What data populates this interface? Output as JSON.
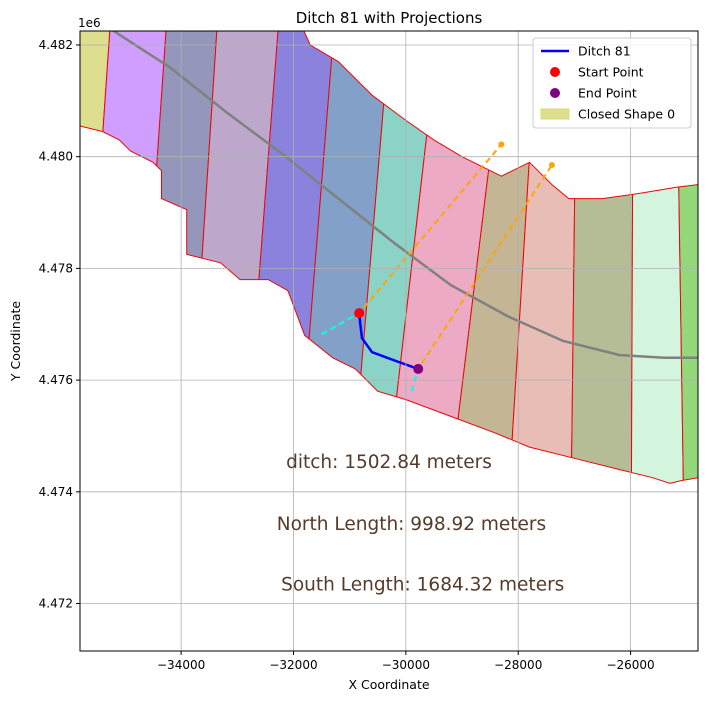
{
  "chart_data": {
    "type": "line",
    "title": "Ditch 81 with Projections",
    "xlabel": "X Coordinate",
    "ylabel": "Y Coordinate",
    "y_offset_label": "1e6",
    "xlim": [
      -35800,
      -24800
    ],
    "ylim": [
      4.47115,
      4.48225
    ],
    "x_ticks": [
      -34000,
      -32000,
      -30000,
      -28000,
      -26000
    ],
    "x_tick_labels": [
      "−34000",
      "−32000",
      "−30000",
      "−28000",
      "−26000"
    ],
    "y_ticks": [
      4.472,
      4.474,
      4.476,
      4.478,
      4.48,
      4.482
    ],
    "y_tick_labels": [
      "4.472",
      "4.474",
      "4.476",
      "4.478",
      "4.480",
      "4.482"
    ],
    "grid": true,
    "legend_position": "top-right",
    "legend": [
      {
        "label": "Ditch 81",
        "kind": "line",
        "color": "#0000ff"
      },
      {
        "label": "Start Point",
        "kind": "marker",
        "color": "#ff0000"
      },
      {
        "label": "End Point",
        "kind": "marker",
        "color": "#800080"
      },
      {
        "label": "Closed Shape 0",
        "kind": "patch",
        "color": "#dede8f"
      }
    ],
    "ditch": {
      "name": "Ditch 81",
      "color": "#0000ff",
      "points": [
        [
          -30830,
          4.4772
        ],
        [
          -30810,
          4.477
        ],
        [
          -30780,
          4.47675
        ],
        [
          -30600,
          4.4765
        ],
        [
          -30200,
          4.47635
        ],
        [
          -29780,
          4.4762
        ]
      ]
    },
    "start_point": {
      "x": -30830,
      "y": 4.4772,
      "color": "#ff0000"
    },
    "end_point": {
      "x": -29780,
      "y": 4.4762,
      "color": "#800080"
    },
    "centerline": {
      "color": "#808080",
      "points": [
        [
          -35800,
          4.4825
        ],
        [
          -35200,
          4.48225
        ],
        [
          -34200,
          4.4816
        ],
        [
          -33200,
          4.4808
        ],
        [
          -32200,
          4.48005
        ],
        [
          -31200,
          4.47925
        ],
        [
          -30200,
          4.47845
        ],
        [
          -29200,
          4.4777
        ],
        [
          -28200,
          4.47715
        ],
        [
          -27200,
          4.4767
        ],
        [
          -26200,
          4.47645
        ],
        [
          -25400,
          4.4764
        ],
        [
          -24800,
          4.4764
        ]
      ]
    },
    "outer_boundary": {
      "north": [
        [
          -35800,
          4.4831
        ],
        [
          -35000,
          4.4831
        ],
        [
          -34200,
          4.4831
        ],
        [
          -33300,
          4.4831
        ],
        [
          -32200,
          4.4831
        ],
        [
          -31700,
          4.482
        ],
        [
          -31200,
          4.4817
        ],
        [
          -30600,
          4.4811
        ],
        [
          -30000,
          4.48065
        ],
        [
          -29500,
          4.4803
        ],
        [
          -29000,
          4.48
        ],
        [
          -28300,
          4.47965
        ],
        [
          -27800,
          4.4799
        ],
        [
          -27400,
          4.4795
        ],
        [
          -27100,
          4.47925
        ],
        [
          -26500,
          4.47925
        ],
        [
          -25800,
          4.47935
        ],
        [
          -25200,
          4.47945
        ],
        [
          -24800,
          4.4795
        ]
      ],
      "south": [
        [
          -35800,
          4.48055
        ],
        [
          -35400,
          4.48045
        ],
        [
          -35100,
          4.4803
        ],
        [
          -34900,
          4.4801
        ],
        [
          -34500,
          4.4799
        ],
        [
          -34350,
          4.47975
        ],
        [
          -34350,
          4.47925
        ],
        [
          -33900,
          4.47905
        ],
        [
          -33900,
          4.47825
        ],
        [
          -33300,
          4.4781
        ],
        [
          -32950,
          4.4778
        ],
        [
          -32450,
          4.4778
        ],
        [
          -32100,
          4.4776
        ],
        [
          -31800,
          4.4768
        ],
        [
          -31300,
          4.4764
        ],
        [
          -30900,
          4.4762
        ],
        [
          -30500,
          4.4758
        ],
        [
          -30000,
          4.47565
        ],
        [
          -29200,
          4.47535
        ],
        [
          -28400,
          4.47505
        ],
        [
          -27800,
          4.4748
        ],
        [
          -27000,
          4.4746
        ],
        [
          -26200,
          4.4744
        ],
        [
          -25600,
          4.47425
        ],
        [
          -25300,
          4.47415
        ],
        [
          -25100,
          4.4742
        ],
        [
          -24800,
          4.47425
        ]
      ]
    },
    "band_colors": [
      "#dede8f",
      "#cf9eff",
      "#9496bb",
      "#bda8cc",
      "#8a82dd",
      "#83a0c9",
      "#8ad3c6",
      "#edaac4",
      "#c4b595",
      "#e8bdb5",
      "#b4bd96",
      "#d3f5de",
      "#95d87c"
    ],
    "band_edges_north": [
      -35200,
      -34200,
      -33300,
      -32200,
      -31200,
      -30200,
      -29300,
      -28100,
      -27600,
      -26950,
      -25950,
      -25200
    ],
    "band_edges_south": [
      -36100,
      -35100,
      -34150,
      -33200,
      -32250,
      -31300,
      -30800,
      -29700,
      -28400,
      -27100,
      -26000,
      -25000
    ],
    "north_projection": {
      "color": "#ffa500",
      "points": [
        [
          -31500,
          4.47682
        ],
        [
          -30830,
          4.4772
        ],
        [
          -28300,
          4.48022
        ]
      ]
    },
    "south_projection": {
      "color": "#ffa500",
      "points": [
        [
          -29900,
          4.4758
        ],
        [
          -29780,
          4.4762
        ],
        [
          -27400,
          4.47985
        ]
      ]
    },
    "cyan_segments": {
      "color": "#00ffff",
      "points": [
        [
          [
            -31500,
            4.47682
          ],
          [
            -30830,
            4.4772
          ]
        ],
        [
          [
            -29900,
            4.4758
          ],
          [
            -29780,
            4.4762
          ]
        ]
      ]
    },
    "annotations": [
      {
        "text": "ditch: 1502.84 meters",
        "x": -30300,
        "y": 4.47443
      },
      {
        "text": "North Length: 998.92 meters",
        "x": -29900,
        "y": 4.47332
      },
      {
        "text": "South Length: 1684.32 meters",
        "x": -29700,
        "y": 4.47223
      }
    ]
  }
}
